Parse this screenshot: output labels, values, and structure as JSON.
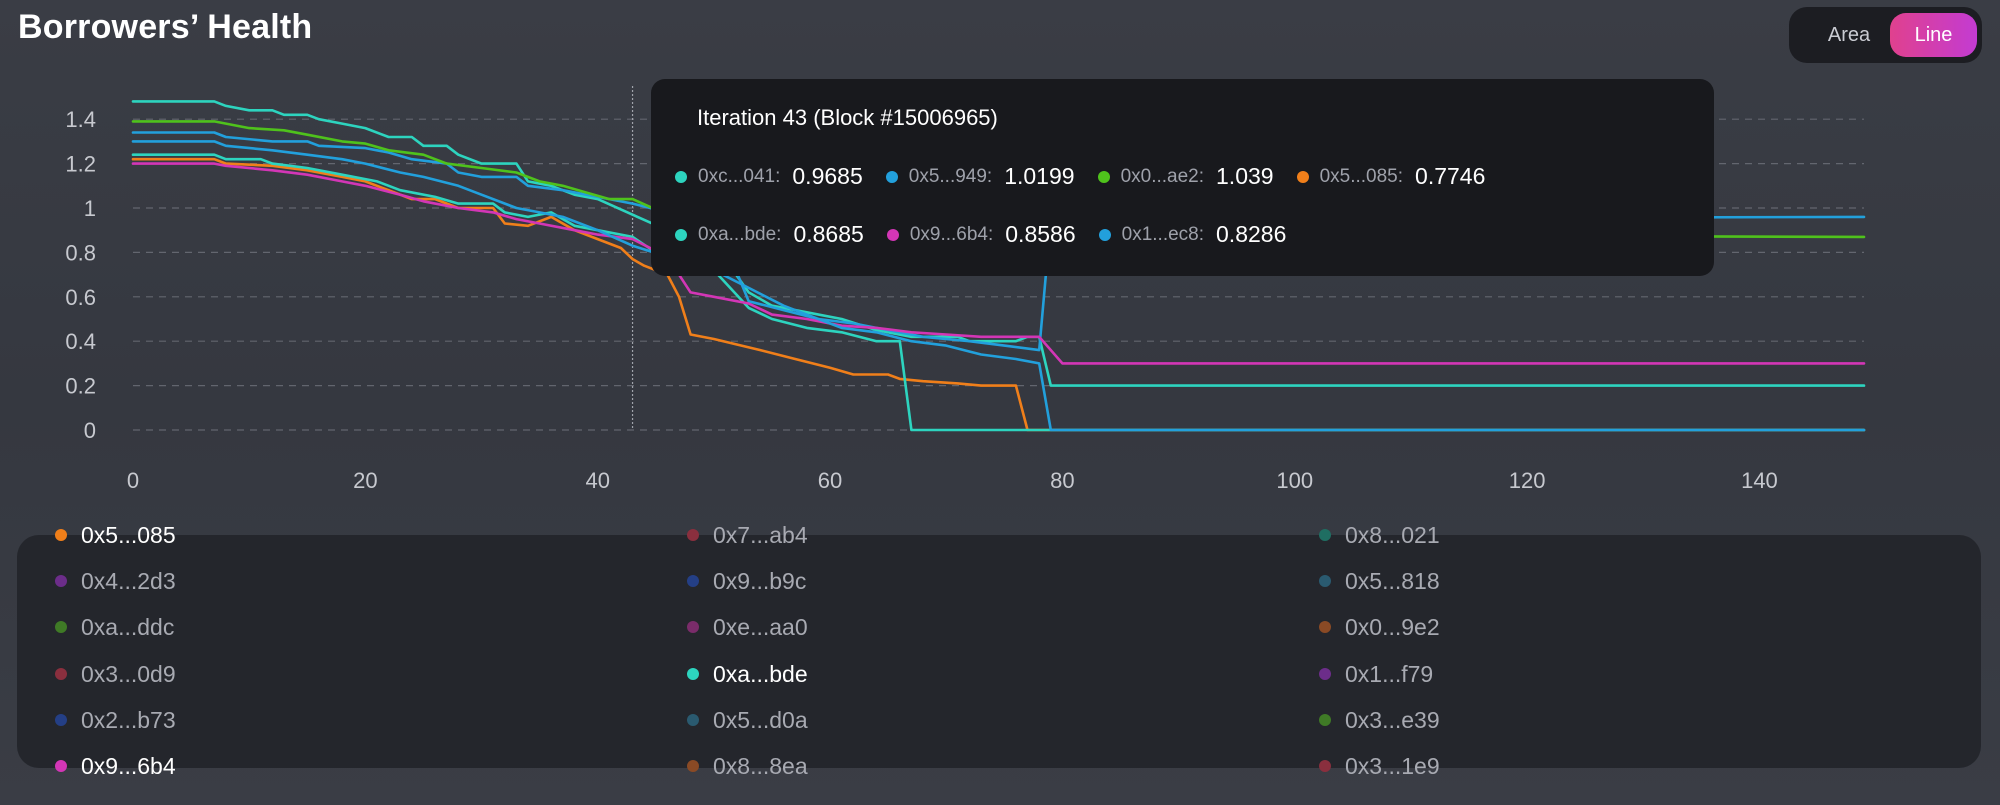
{
  "header": {
    "title": "Borrowers’ Health"
  },
  "toggle": {
    "area_label": "Area",
    "line_label": "Line",
    "active": "Line"
  },
  "tooltip": {
    "title": "Iteration 43 (Block #15006965)",
    "rows": [
      [
        {
          "name": "0xc...041:",
          "value": "0.9685",
          "color": "#2dd4bf"
        },
        {
          "name": "0x5...949:",
          "value": "1.0199",
          "color": "#22a0dc"
        },
        {
          "name": "0x0...ae2:",
          "value": "1.039",
          "color": "#4fc21c"
        },
        {
          "name": "0x5...085:",
          "value": "0.7746",
          "color": "#f07f1a"
        }
      ],
      [
        {
          "name": "0xa...bde:",
          "value": "0.8685",
          "color": "#2dd4bf"
        },
        {
          "name": "0x9...6b4:",
          "value": "0.8586",
          "color": "#d336b6"
        },
        {
          "name": "0x1...ec8:",
          "value": "0.8286",
          "color": "#22a0dc"
        }
      ]
    ]
  },
  "legend": {
    "columns": [
      [
        {
          "label": "0x5...085",
          "color": "#f07f1a",
          "active": true
        },
        {
          "label": "0x4...2d3",
          "color": "#6c2d8a",
          "active": false
        },
        {
          "label": "0xa...ddc",
          "color": "#3f7a26",
          "active": false
        },
        {
          "label": "0x3...0d9",
          "color": "#8a2f3e",
          "active": false
        },
        {
          "label": "0x2...b73",
          "color": "#243f86",
          "active": false
        },
        {
          "label": "0x9...6b4",
          "color": "#d336b6",
          "active": true
        }
      ],
      [
        {
          "label": "0x7...ab4",
          "color": "#8a2f3e",
          "active": false
        },
        {
          "label": "0x9...b9c",
          "color": "#243f86",
          "active": false
        },
        {
          "label": "0xe...aa0",
          "color": "#7a2c6a",
          "active": false
        },
        {
          "label": "0xa...bde",
          "color": "#2dd4bf",
          "active": true
        },
        {
          "label": "0x5...d0a",
          "color": "#2a5a70",
          "active": false
        },
        {
          "label": "0x8...8ea",
          "color": "#8a4a25",
          "active": false
        }
      ],
      [
        {
          "label": "0x8...021",
          "color": "#1f6e62",
          "active": false
        },
        {
          "label": "0x5...818",
          "color": "#2a5a70",
          "active": false
        },
        {
          "label": "0x0...9e2",
          "color": "#8a4a25",
          "active": false
        },
        {
          "label": "0x1...f79",
          "color": "#6c2d8a",
          "active": false
        },
        {
          "label": "0x3...e39",
          "color": "#3f7a26",
          "active": false
        },
        {
          "label": "0x3...1e9",
          "color": "#8a2f3e",
          "active": false
        }
      ]
    ]
  },
  "chart_data": {
    "type": "line",
    "title": "Borrowers’ Health",
    "xlabel": "",
    "ylabel": "",
    "xlim": [
      0,
      149
    ],
    "ylim": [
      0,
      1.5
    ],
    "xticks": [
      "0",
      "20",
      "40",
      "60",
      "80",
      "100",
      "120",
      "140"
    ],
    "yticks": [
      "0",
      "0.2",
      "0.4",
      "0.6",
      "0.8",
      "1",
      "1.2",
      "1.4"
    ],
    "hover_x": 43,
    "series": [
      {
        "name": "0xc...041",
        "color": "#2dd4bf",
        "points": [
          [
            0,
            1.48
          ],
          [
            7,
            1.48
          ],
          [
            8,
            1.46
          ],
          [
            10,
            1.44
          ],
          [
            12,
            1.44
          ],
          [
            13,
            1.42
          ],
          [
            15,
            1.42
          ],
          [
            16,
            1.4
          ],
          [
            18,
            1.38
          ],
          [
            20,
            1.36
          ],
          [
            22,
            1.32
          ],
          [
            24,
            1.32
          ],
          [
            25,
            1.28
          ],
          [
            27,
            1.28
          ],
          [
            28,
            1.24
          ],
          [
            30,
            1.2
          ],
          [
            33,
            1.2
          ],
          [
            34,
            1.12
          ],
          [
            36,
            1.1
          ],
          [
            38,
            1.06
          ],
          [
            40,
            1.04
          ],
          [
            43,
            0.97
          ],
          [
            46,
            0.9
          ],
          [
            50,
            0.84
          ],
          [
            53,
            0.62
          ],
          [
            55,
            0.56
          ],
          [
            58,
            0.53
          ],
          [
            61,
            0.5
          ],
          [
            64,
            0.45
          ],
          [
            67,
            0.42
          ],
          [
            71,
            0.42
          ],
          [
            72,
            0.4
          ],
          [
            76,
            0.4
          ],
          [
            77,
            0.42
          ],
          [
            78,
            0.42
          ],
          [
            79,
            0.2
          ],
          [
            149,
            0.2
          ]
        ]
      },
      {
        "name": "0x5...949",
        "color": "#22a0dc",
        "points": [
          [
            0,
            1.34
          ],
          [
            7,
            1.34
          ],
          [
            8,
            1.32
          ],
          [
            12,
            1.3
          ],
          [
            15,
            1.3
          ],
          [
            16,
            1.28
          ],
          [
            20,
            1.27
          ],
          [
            22,
            1.25
          ],
          [
            24,
            1.22
          ],
          [
            27,
            1.2
          ],
          [
            28,
            1.16
          ],
          [
            30,
            1.14
          ],
          [
            33,
            1.14
          ],
          [
            34,
            1.1
          ],
          [
            37,
            1.08
          ],
          [
            40,
            1.05
          ],
          [
            43,
            1.02
          ],
          [
            46,
            0.98
          ],
          [
            50,
            0.96
          ],
          [
            53,
            0.58
          ],
          [
            56,
            0.54
          ],
          [
            59,
            0.5
          ],
          [
            62,
            0.48
          ],
          [
            65,
            0.45
          ],
          [
            68,
            0.42
          ],
          [
            72,
            0.4
          ],
          [
            75,
            0.38
          ],
          [
            78,
            0.36
          ],
          [
            79,
            0.95
          ],
          [
            149,
            0.96
          ]
        ]
      },
      {
        "name": "0x0...ae2",
        "color": "#4fc21c",
        "points": [
          [
            0,
            1.39
          ],
          [
            7,
            1.39
          ],
          [
            8,
            1.38
          ],
          [
            10,
            1.36
          ],
          [
            13,
            1.35
          ],
          [
            15,
            1.33
          ],
          [
            18,
            1.3
          ],
          [
            20,
            1.29
          ],
          [
            22,
            1.26
          ],
          [
            25,
            1.24
          ],
          [
            27,
            1.2
          ],
          [
            30,
            1.18
          ],
          [
            33,
            1.16
          ],
          [
            35,
            1.12
          ],
          [
            37,
            1.1
          ],
          [
            39,
            1.07
          ],
          [
            41,
            1.04
          ],
          [
            43,
            1.04
          ],
          [
            46,
            0.97
          ],
          [
            50,
            0.94
          ],
          [
            53,
            0.92
          ],
          [
            60,
            0.9
          ],
          [
            80,
            0.88
          ],
          [
            149,
            0.87
          ]
        ]
      },
      {
        "name": "0x5...085",
        "color": "#f07f1a",
        "points": [
          [
            0,
            1.22
          ],
          [
            7,
            1.22
          ],
          [
            8,
            1.2
          ],
          [
            12,
            1.19
          ],
          [
            15,
            1.17
          ],
          [
            18,
            1.14
          ],
          [
            20,
            1.12
          ],
          [
            22,
            1.08
          ],
          [
            24,
            1.04
          ],
          [
            26,
            1.04
          ],
          [
            28,
            1.0
          ],
          [
            31,
            1.0
          ],
          [
            32,
            0.93
          ],
          [
            34,
            0.92
          ],
          [
            36,
            0.96
          ],
          [
            38,
            0.9
          ],
          [
            40,
            0.86
          ],
          [
            42,
            0.82
          ],
          [
            43,
            0.77
          ],
          [
            44,
            0.74
          ],
          [
            46,
            0.7
          ],
          [
            47,
            0.6
          ],
          [
            48,
            0.43
          ],
          [
            50,
            0.41
          ],
          [
            54,
            0.36
          ],
          [
            57,
            0.32
          ],
          [
            60,
            0.28
          ],
          [
            62,
            0.25
          ],
          [
            65,
            0.25
          ],
          [
            66,
            0.23
          ],
          [
            68,
            0.22
          ],
          [
            71,
            0.21
          ],
          [
            73,
            0.2
          ],
          [
            76,
            0.2
          ],
          [
            77,
            0.0
          ],
          [
            149,
            0.0
          ]
        ]
      },
      {
        "name": "0xa...bde",
        "color": "#2dd4bf",
        "points": [
          [
            0,
            1.24
          ],
          [
            7,
            1.24
          ],
          [
            8,
            1.22
          ],
          [
            11,
            1.22
          ],
          [
            12,
            1.2
          ],
          [
            15,
            1.18
          ],
          [
            18,
            1.15
          ],
          [
            21,
            1.12
          ],
          [
            23,
            1.08
          ],
          [
            26,
            1.05
          ],
          [
            28,
            1.02
          ],
          [
            31,
            1.02
          ],
          [
            32,
            0.98
          ],
          [
            34,
            0.96
          ],
          [
            36,
            0.98
          ],
          [
            38,
            0.92
          ],
          [
            40,
            0.9
          ],
          [
            43,
            0.87
          ],
          [
            45,
            0.8
          ],
          [
            47,
            0.78
          ],
          [
            50,
            0.72
          ],
          [
            53,
            0.55
          ],
          [
            55,
            0.5
          ],
          [
            58,
            0.46
          ],
          [
            61,
            0.44
          ],
          [
            64,
            0.4
          ],
          [
            66,
            0.4
          ],
          [
            67,
            0.0
          ],
          [
            149,
            0.0
          ]
        ]
      },
      {
        "name": "0x9...6b4",
        "color": "#d336b6",
        "points": [
          [
            0,
            1.2
          ],
          [
            7,
            1.2
          ],
          [
            8,
            1.19
          ],
          [
            12,
            1.17
          ],
          [
            15,
            1.15
          ],
          [
            18,
            1.12
          ],
          [
            20,
            1.1
          ],
          [
            23,
            1.06
          ],
          [
            25,
            1.03
          ],
          [
            28,
            1.0
          ],
          [
            31,
            0.98
          ],
          [
            33,
            0.95
          ],
          [
            35,
            0.93
          ],
          [
            38,
            0.9
          ],
          [
            40,
            0.88
          ],
          [
            43,
            0.86
          ],
          [
            46,
            0.78
          ],
          [
            48,
            0.62
          ],
          [
            50,
            0.6
          ],
          [
            53,
            0.57
          ],
          [
            55,
            0.52
          ],
          [
            58,
            0.5
          ],
          [
            61,
            0.47
          ],
          [
            64,
            0.46
          ],
          [
            67,
            0.44
          ],
          [
            70,
            0.43
          ],
          [
            73,
            0.42
          ],
          [
            78,
            0.42
          ],
          [
            80,
            0.3
          ],
          [
            149,
            0.3
          ]
        ]
      },
      {
        "name": "0x1...ec8",
        "color": "#22a0dc",
        "points": [
          [
            0,
            1.3
          ],
          [
            7,
            1.3
          ],
          [
            8,
            1.28
          ],
          [
            12,
            1.26
          ],
          [
            15,
            1.24
          ],
          [
            18,
            1.22
          ],
          [
            20,
            1.2
          ],
          [
            23,
            1.16
          ],
          [
            25,
            1.14
          ],
          [
            28,
            1.1
          ],
          [
            30,
            1.06
          ],
          [
            33,
            1.0
          ],
          [
            35,
            0.98
          ],
          [
            37,
            0.96
          ],
          [
            40,
            0.9
          ],
          [
            43,
            0.83
          ],
          [
            46,
            0.78
          ],
          [
            50,
            0.72
          ],
          [
            53,
            0.64
          ],
          [
            56,
            0.56
          ],
          [
            58,
            0.52
          ],
          [
            61,
            0.46
          ],
          [
            64,
            0.44
          ],
          [
            67,
            0.4
          ],
          [
            70,
            0.38
          ],
          [
            73,
            0.34
          ],
          [
            76,
            0.32
          ],
          [
            78,
            0.3
          ],
          [
            79,
            0.0
          ],
          [
            149,
            0.0
          ]
        ]
      }
    ]
  }
}
